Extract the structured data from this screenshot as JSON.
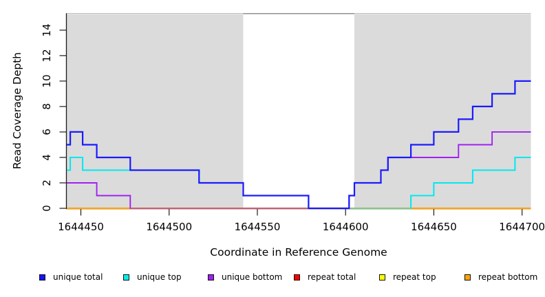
{
  "figure": {
    "description": "Read coverage depth step plot across a reference genome window, with repeat-masked regions shaded gray and a central unshaded gap"
  },
  "chart_data": {
    "type": "step-line",
    "title": "",
    "xlabel": "Coordinate in Reference Genome",
    "ylabel": "Read Coverage Depth",
    "xlim": [
      1644442,
      1644705
    ],
    "ylim": [
      0,
      15.3
    ],
    "x_ticks": [
      1644450,
      1644500,
      1644550,
      1644600,
      1644650,
      1644700
    ],
    "y_ticks": [
      0,
      2,
      4,
      6,
      8,
      10,
      12,
      14
    ],
    "grid": "off",
    "background_regions": [
      {
        "name": "shaded-left",
        "from": 1644442,
        "to": 1644542,
        "color": "#DBDBDB"
      },
      {
        "name": "unshaded-gap",
        "from": 1644542,
        "to": 1644605,
        "color": "#FFFFFF",
        "top_border_color": "#8A8A8A"
      },
      {
        "name": "shaded-right",
        "from": 1644605,
        "to": 1644705,
        "color": "#DBDBDB"
      }
    ],
    "plot_top_edge_color": "#B5B5B5",
    "axis_color": "#1A1A1A",
    "series": [
      {
        "name": "unique total",
        "color": "#1A1AFF",
        "steps": [
          [
            1644442,
            5
          ],
          [
            1644444,
            6
          ],
          [
            1644451,
            5
          ],
          [
            1644459,
            4
          ],
          [
            1644478,
            3
          ],
          [
            1644517,
            2
          ],
          [
            1644542,
            1
          ],
          [
            1644579,
            0
          ],
          [
            1644602,
            1
          ],
          [
            1644605,
            2
          ],
          [
            1644620,
            3
          ],
          [
            1644624,
            4
          ],
          [
            1644637,
            5
          ],
          [
            1644650,
            6
          ],
          [
            1644664,
            7
          ],
          [
            1644672,
            8
          ],
          [
            1644683,
            9
          ],
          [
            1644696,
            10
          ]
        ]
      },
      {
        "name": "unique top",
        "color": "#00E8F0",
        "steps": [
          [
            1644442,
            3
          ],
          [
            1644444,
            4
          ],
          [
            1644451,
            3
          ],
          [
            1644517,
            2
          ],
          [
            1644542,
            1
          ],
          [
            1644579,
            0
          ],
          [
            1644637,
            1
          ],
          [
            1644650,
            2
          ],
          [
            1644672,
            3
          ],
          [
            1644696,
            4
          ]
        ]
      },
      {
        "name": "unique bottom",
        "color": "#A020F0",
        "steps": [
          [
            1644442,
            2
          ],
          [
            1644459,
            1
          ],
          [
            1644478,
            0
          ],
          [
            1644602,
            1
          ],
          [
            1644605,
            2
          ],
          [
            1644620,
            3
          ],
          [
            1644624,
            4
          ],
          [
            1644664,
            5
          ],
          [
            1644683,
            6
          ]
        ]
      },
      {
        "name": "repeat total",
        "color": "#FF0000",
        "steps": [
          [
            1644442,
            0
          ]
        ]
      },
      {
        "name": "repeat top",
        "color": "#FFFF00",
        "steps": [
          [
            1644442,
            0
          ]
        ]
      },
      {
        "name": "repeat bottom",
        "color": "#FFA500",
        "steps": [
          [
            1644442,
            0
          ]
        ]
      }
    ],
    "zero_line_overlays": [
      {
        "from": 1644478,
        "to": 1644602,
        "color": "#C75C84",
        "note": "unique-bottom line overlapping repeat-bottom at depth 0"
      },
      {
        "from": 1644602,
        "to": 1644637,
        "color": "#7CCB96",
        "note": "unique-top line overlapping repeat-bottom at depth 0"
      }
    ]
  },
  "legend": {
    "items": [
      {
        "label": "unique total",
        "color": "#1414FF"
      },
      {
        "label": "unique top",
        "color": "#00EEEE"
      },
      {
        "label": "unique bottom",
        "color": "#A020F0"
      },
      {
        "label": "repeat total",
        "color": "#FF0000"
      },
      {
        "label": "repeat top",
        "color": "#FFFF00"
      },
      {
        "label": "repeat bottom",
        "color": "#FFA500"
      }
    ]
  }
}
